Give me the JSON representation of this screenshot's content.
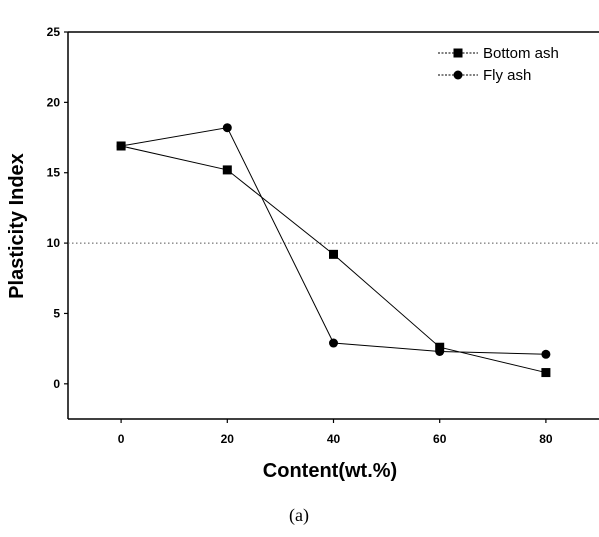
{
  "chart_data": {
    "type": "line",
    "xlabel": "Content(wt.%)",
    "ylabel": "Plasticity Index",
    "x": [
      0,
      20,
      40,
      60,
      80
    ],
    "x_ticks": [
      "0",
      "20",
      "40",
      "60",
      "80"
    ],
    "y_ticks": [
      "0",
      "5",
      "10",
      "15",
      "20",
      "25"
    ],
    "xlim": [
      -10,
      90
    ],
    "ylim": [
      -2.5,
      25
    ],
    "series": [
      {
        "name": "Bottom ash",
        "marker": "square",
        "values": [
          16.9,
          15.2,
          9.2,
          2.6,
          0.8
        ]
      },
      {
        "name": "Fly ash",
        "marker": "circle",
        "values": [
          16.9,
          18.2,
          2.9,
          2.3,
          2.1
        ]
      }
    ],
    "reference_line": {
      "y": 10,
      "style": "dotted"
    },
    "legend_position": "top-right",
    "grid": false,
    "caption": "(a)"
  }
}
